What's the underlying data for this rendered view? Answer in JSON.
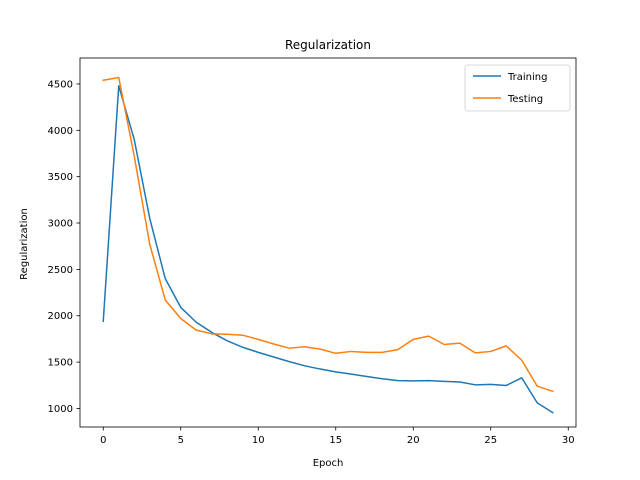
{
  "chart_data": {
    "type": "line",
    "title": "Regularization",
    "xlabel": "Epoch",
    "ylabel": "Regularization",
    "xlim": [
      -1.5,
      30.5
    ],
    "ylim": [
      800,
      4780
    ],
    "xticks": [
      0,
      5,
      10,
      15,
      20,
      25,
      30
    ],
    "yticks": [
      1000,
      1500,
      2000,
      2500,
      3000,
      3500,
      4000,
      4500
    ],
    "grid": false,
    "legend_position": "top-right",
    "x": [
      0,
      1,
      2,
      3,
      4,
      5,
      6,
      7,
      8,
      9,
      10,
      11,
      12,
      13,
      14,
      15,
      16,
      17,
      18,
      19,
      20,
      21,
      22,
      23,
      24,
      25,
      26,
      27,
      28,
      29
    ],
    "series": [
      {
        "name": "Training",
        "color": "#1f77b4",
        "values": [
          1940,
          4480,
          3900,
          3050,
          2400,
          2090,
          1930,
          1820,
          1730,
          1660,
          1605,
          1555,
          1505,
          1460,
          1425,
          1395,
          1370,
          1345,
          1320,
          1300,
          1298,
          1300,
          1292,
          1285,
          1255,
          1260,
          1248,
          1330,
          1060,
          955
        ]
      },
      {
        "name": "Testing",
        "color": "#ff7f0e",
        "values": [
          4540,
          4570,
          3720,
          2770,
          2170,
          1970,
          1845,
          1805,
          1800,
          1790,
          1745,
          1695,
          1650,
          1665,
          1640,
          1595,
          1615,
          1605,
          1605,
          1635,
          1745,
          1780,
          1690,
          1705,
          1600,
          1615,
          1675,
          1520,
          1240,
          1185
        ]
      }
    ]
  }
}
